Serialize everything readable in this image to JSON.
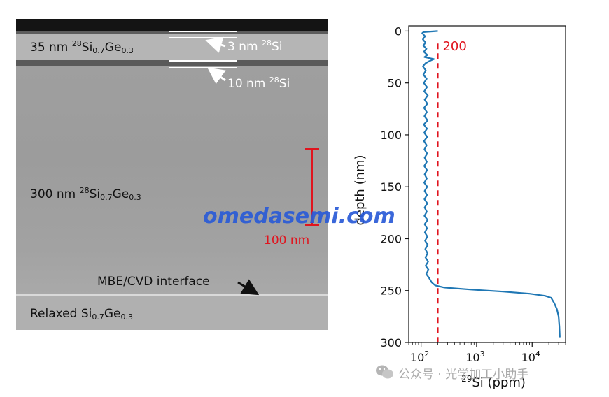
{
  "tem_image": {
    "layers": [
      {
        "thickness": "35 nm",
        "iso": "28",
        "el1": "Si",
        "sub1": "0.7",
        "el2": "Ge",
        "sub2": "0.3"
      },
      {
        "thickness": "300 nm",
        "iso": "28",
        "el1": "Si",
        "sub1": "0.7",
        "el2": "Ge",
        "sub2": "0.3"
      },
      {
        "prefix": "Relaxed ",
        "el1": "Si",
        "sub1": "0.7",
        "el2": "Ge",
        "sub2": "0.3"
      }
    ],
    "annotations": [
      {
        "thickness": "3 nm ",
        "iso": "28",
        "el": "Si"
      },
      {
        "thickness": "10 nm ",
        "iso": "28",
        "el": "Si"
      }
    ],
    "interface_label": "MBE/CVD interface",
    "scale_bar_label": "100 nm",
    "colors": {
      "scale_bar": "#e0141e",
      "annotation_lines": "#ffffff"
    }
  },
  "chart_data": {
    "type": "line",
    "xlabel_iso": "29",
    "xlabel_el": "Si",
    "xlabel_unit": " (ppm)",
    "ylabel": "depth (nm)",
    "x_scale": "log",
    "xlim": [
      60,
      40000
    ],
    "ylim": [
      300,
      -5
    ],
    "y_ticks": [
      0,
      50,
      100,
      150,
      200,
      250,
      300
    ],
    "x_ticks": [
      {
        "base": "10",
        "exp": "2",
        "value": 100
      },
      {
        "base": "10",
        "exp": "3",
        "value": 1000
      },
      {
        "base": "10",
        "exp": "4",
        "value": 10000
      }
    ],
    "series": [
      {
        "color": "#1f77b4",
        "points": [
          [
            200,
            0
          ],
          [
            110,
            1
          ],
          [
            105,
            2
          ],
          [
            118,
            5
          ],
          [
            108,
            8
          ],
          [
            120,
            11
          ],
          [
            110,
            14
          ],
          [
            125,
            17
          ],
          [
            112,
            20
          ],
          [
            130,
            23
          ],
          [
            115,
            25
          ],
          [
            170,
            27
          ],
          [
            140,
            29
          ],
          [
            120,
            31
          ],
          [
            108,
            34
          ],
          [
            122,
            38
          ],
          [
            110,
            42
          ],
          [
            126,
            46
          ],
          [
            112,
            50
          ],
          [
            128,
            54
          ],
          [
            114,
            58
          ],
          [
            132,
            62
          ],
          [
            116,
            66
          ],
          [
            130,
            70
          ],
          [
            113,
            74
          ],
          [
            127,
            78
          ],
          [
            115,
            82
          ],
          [
            131,
            86
          ],
          [
            112,
            90
          ],
          [
            128,
            94
          ],
          [
            114,
            98
          ],
          [
            129,
            102
          ],
          [
            113,
            106
          ],
          [
            126,
            110
          ],
          [
            115,
            114
          ],
          [
            129,
            118
          ],
          [
            116,
            122
          ],
          [
            127,
            126
          ],
          [
            114,
            130
          ],
          [
            128,
            134
          ],
          [
            116,
            138
          ],
          [
            127,
            142
          ],
          [
            114,
            146
          ],
          [
            129,
            150
          ],
          [
            116,
            154
          ],
          [
            128,
            158
          ],
          [
            115,
            162
          ],
          [
            130,
            166
          ],
          [
            116,
            170
          ],
          [
            127,
            174
          ],
          [
            115,
            178
          ],
          [
            131,
            182
          ],
          [
            116,
            186
          ],
          [
            128,
            190
          ],
          [
            117,
            194
          ],
          [
            130,
            198
          ],
          [
            118,
            202
          ],
          [
            132,
            206
          ],
          [
            119,
            210
          ],
          [
            131,
            214
          ],
          [
            120,
            218
          ],
          [
            134,
            222
          ],
          [
            121,
            226
          ],
          [
            136,
            230
          ],
          [
            124,
            234
          ],
          [
            140,
            238
          ],
          [
            155,
            242
          ],
          [
            180,
            245
          ],
          [
            260,
            247
          ],
          [
            800,
            249
          ],
          [
            3000,
            251
          ],
          [
            9000,
            253
          ],
          [
            17000,
            255
          ],
          [
            22000,
            257
          ],
          [
            25000,
            262
          ],
          [
            28000,
            268
          ],
          [
            30000,
            275
          ],
          [
            31000,
            285
          ],
          [
            31500,
            295
          ]
        ]
      }
    ],
    "reference_line": {
      "value": 200,
      "label": "200",
      "color": "#e0141e"
    }
  },
  "watermark": "omedasemi.com",
  "wechat_caption": "公众号 · 光学加工小助手"
}
